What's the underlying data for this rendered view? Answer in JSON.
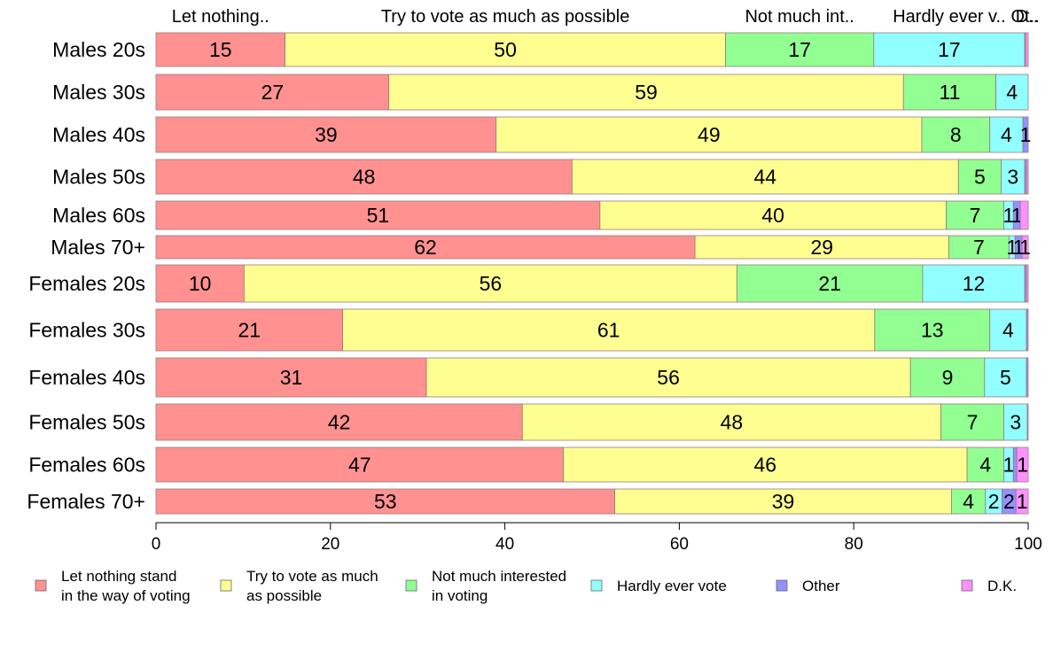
{
  "chart_data": {
    "type": "bar",
    "orientation": "horizontal",
    "stacked": true,
    "categories": [
      "Males 20s",
      "Males 30s",
      "Males 40s",
      "Males 50s",
      "Males 60s",
      "Males 70+",
      "Females 20s",
      "Females 30s",
      "Females 40s",
      "Females 50s",
      "Females 60s",
      "Females 70+"
    ],
    "series": [
      {
        "name": "Let nothing stand in the way of voting",
        "legend_lines": [
          "Let nothing stand",
          "in the way of voting"
        ],
        "top_label": "Let nothing..",
        "color": "#ff9191",
        "values": [
          14.8,
          26.7,
          39.0,
          47.7,
          50.9,
          61.8,
          10.1,
          21.4,
          31.0,
          42.0,
          46.7,
          52.6
        ],
        "labels": [
          "15",
          "27",
          "39",
          "48",
          "51",
          "62",
          "10",
          "21",
          "31",
          "42",
          "47",
          "53"
        ]
      },
      {
        "name": "Try to vote as much as possible",
        "legend_lines": [
          "Try to vote as much",
          "as possible"
        ],
        "top_label": "Try to vote as much as possible",
        "color": "#ffff91",
        "values": [
          50.5,
          59.0,
          48.8,
          44.3,
          39.7,
          29.1,
          56.5,
          61.0,
          55.5,
          48.0,
          46.3,
          38.6
        ],
        "labels": [
          "50",
          "59",
          "49",
          "44",
          "40",
          "29",
          "56",
          "61",
          "56",
          "48",
          "46",
          "39"
        ]
      },
      {
        "name": "Not much interested in voting",
        "legend_lines": [
          "Not much interested",
          "in voting"
        ],
        "top_label": "Not much int..",
        "color": "#91ff91",
        "values": [
          17.0,
          10.6,
          7.8,
          4.9,
          6.6,
          6.9,
          21.3,
          13.2,
          8.5,
          7.2,
          4.2,
          3.9
        ],
        "labels": [
          "17",
          "11",
          "8",
          "5",
          "7",
          "7",
          "21",
          "13",
          "9",
          "7",
          "4",
          "4"
        ]
      },
      {
        "name": "Hardly ever vote",
        "legend_lines": [
          "Hardly ever vote"
        ],
        "top_label": "Hardly ever v..",
        "color": "#91ffff",
        "values": [
          17.3,
          3.7,
          3.8,
          2.7,
          1.1,
          0.7,
          11.7,
          4.2,
          4.8,
          2.7,
          1.1,
          1.9
        ],
        "labels": [
          "17",
          "4",
          "4",
          "3",
          "1",
          "1",
          "12",
          "4",
          "5",
          "3",
          "1",
          "2"
        ]
      },
      {
        "name": "Other",
        "legend_lines": [
          "Other"
        ],
        "top_label": "Ot..",
        "color": "#9191ff",
        "values": [
          0.1,
          0.0,
          0.6,
          0.2,
          0.8,
          0.8,
          0.2,
          0.2,
          0.2,
          0.0,
          0.4,
          1.6
        ],
        "labels": [
          "",
          "",
          "1",
          "",
          "1",
          "1",
          "",
          "",
          "",
          "",
          "",
          "2"
        ]
      },
      {
        "name": "D.K.",
        "legend_lines": [
          "D.K."
        ],
        "top_label": "D..",
        "color": "#ff91ff",
        "values": [
          0.3,
          0.0,
          0.0,
          0.2,
          0.9,
          0.7,
          0.2,
          0.0,
          0.0,
          0.1,
          1.3,
          1.4
        ],
        "labels": [
          "",
          "",
          "",
          "",
          "",
          "1",
          "",
          "",
          "",
          "",
          "1",
          "1"
        ]
      }
    ],
    "xlim": [
      0,
      100
    ],
    "xticks": [
      "0",
      "20",
      "40",
      "60",
      "80",
      "100"
    ],
    "legend_position": "bottom",
    "grid": false
  }
}
